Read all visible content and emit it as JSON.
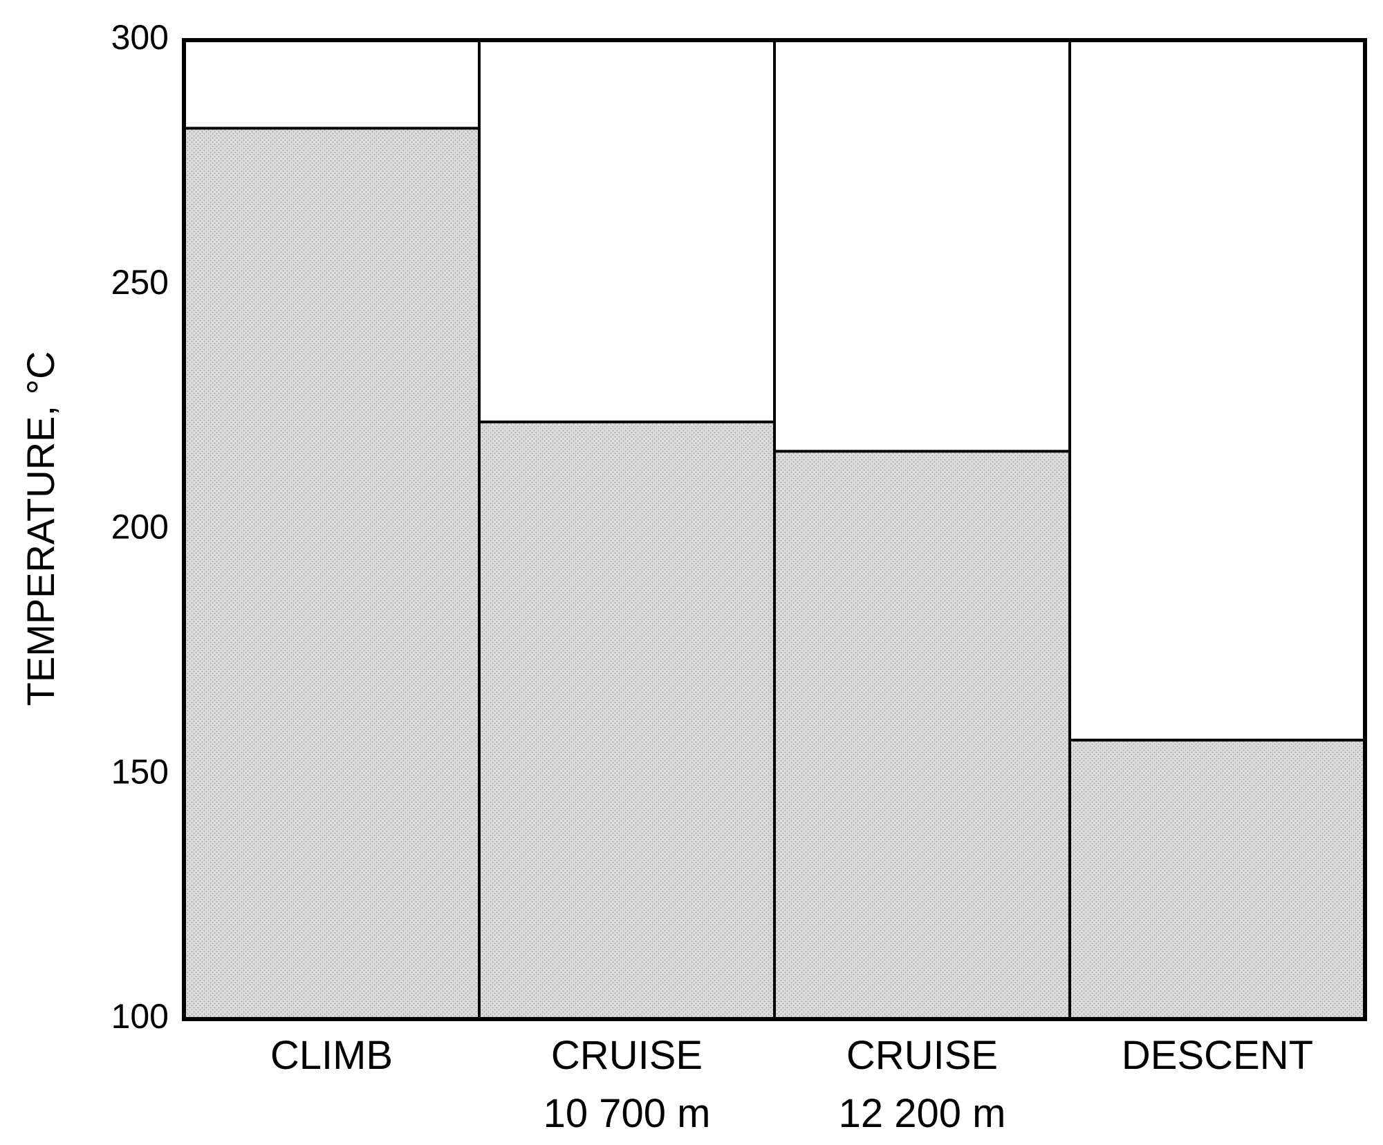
{
  "chart_data": {
    "type": "bar",
    "categories": [
      {
        "lines": [
          "CLIMB"
        ]
      },
      {
        "lines": [
          "CRUISE",
          "10 700 m"
        ]
      },
      {
        "lines": [
          "CRUISE",
          "12 200 m"
        ]
      },
      {
        "lines": [
          "DESCENT"
        ]
      }
    ],
    "values": [
      282,
      222,
      216,
      157
    ],
    "ylabel": "TEMPERATURE, °C",
    "ylim": [
      100,
      300
    ],
    "yticks": [
      "100",
      "150",
      "200",
      "250",
      "300"
    ],
    "ytick_values": [
      100,
      150,
      200,
      250,
      300
    ],
    "grid": false,
    "bar_fill": "#d9d9d9",
    "line_color": "#000000"
  }
}
